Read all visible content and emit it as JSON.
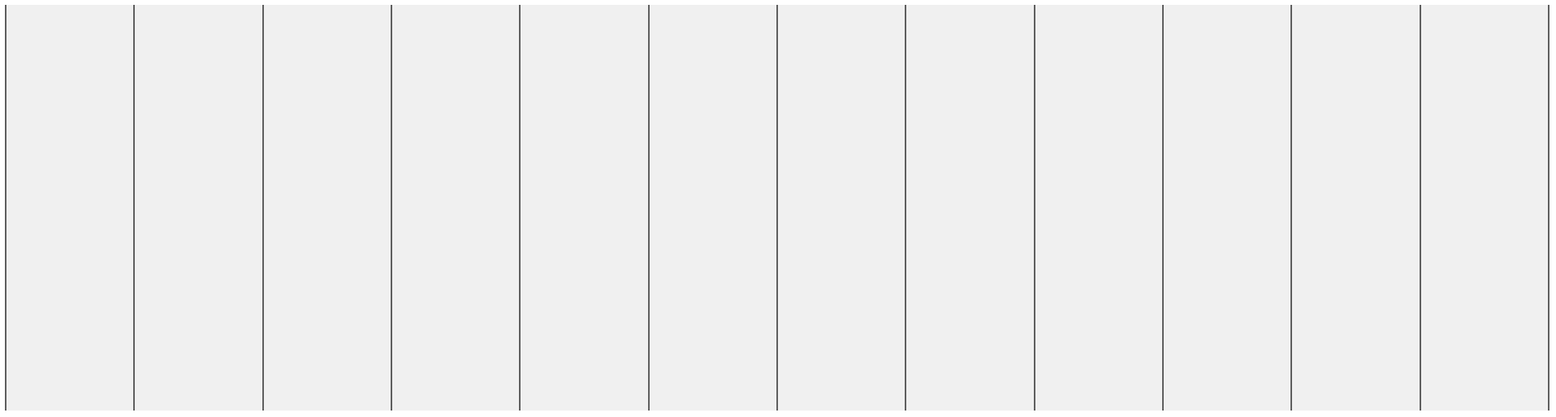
{
  "panel": {
    "columns": [
      {
        "id": "col-1"
      },
      {
        "id": "col-2"
      },
      {
        "id": "col-3"
      },
      {
        "id": "col-4"
      },
      {
        "id": "col-5"
      },
      {
        "id": "col-6"
      },
      {
        "id": "col-7"
      },
      {
        "id": "col-8"
      },
      {
        "id": "col-9"
      },
      {
        "id": "col-10"
      },
      {
        "id": "col-11"
      },
      {
        "id": "col-12"
      }
    ]
  },
  "colors": {
    "background": "#f0f0f0",
    "divider": "#5f5f5f",
    "page": "#ffffff"
  }
}
